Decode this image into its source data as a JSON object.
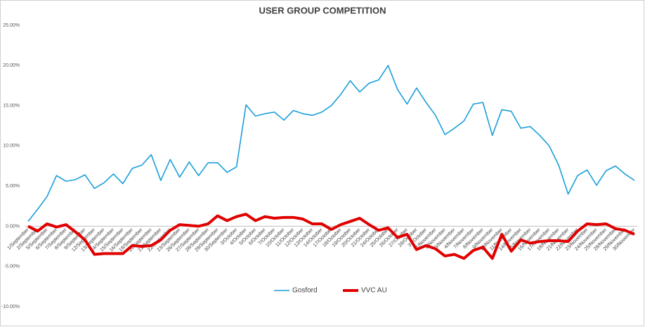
{
  "chart_data": {
    "type": "line",
    "title": "USER GROUP COMPETITION",
    "categories": [
      "1/September",
      "2/September",
      "5/September",
      "6/September",
      "7/September",
      "8/September",
      "9/September",
      "12/September",
      "13/September",
      "14/September",
      "15/September",
      "16/September",
      "19/September",
      "20/September",
      "21/September",
      "22/September",
      "23/September",
      "26/September",
      "27/September",
      "28/September",
      "29/September",
      "30/September",
      "3/October",
      "4/October",
      "5/October",
      "6/October",
      "7/October",
      "10/October",
      "11/October",
      "12/October",
      "13/October",
      "14/October",
      "17/October",
      "18/October",
      "19/October",
      "20/October",
      "21/October",
      "24/October",
      "25/October",
      "26/October",
      "27/October",
      "28/October",
      "31/October",
      "1/November",
      "2/November",
      "3/November",
      "4/November",
      "7/November",
      "8/November",
      "9/November",
      "10/November",
      "11/November",
      "14/November",
      "15/November",
      "16/November",
      "17/November",
      "18/November",
      "21/November",
      "22/November",
      "23/November",
      "24/November",
      "25/November",
      "28/November",
      "29/November",
      "30/November"
    ],
    "series": [
      {
        "name": "Gosford",
        "color": "#1a9fd9",
        "values": [
          0.6,
          2.1,
          3.7,
          6.3,
          5.6,
          5.8,
          6.4,
          4.7,
          5.4,
          6.5,
          5.3,
          7.2,
          7.6,
          8.9,
          5.7,
          8.3,
          6.1,
          8.0,
          6.3,
          7.9,
          7.9,
          6.7,
          7.4,
          15.1,
          13.7,
          14.0,
          14.2,
          13.2,
          14.4,
          14.0,
          13.8,
          14.2,
          15.0,
          16.4,
          18.1,
          16.7,
          17.8,
          18.2,
          20.0,
          17.0,
          15.2,
          17.2,
          15.4,
          13.8,
          11.4,
          12.2,
          13.1,
          15.2,
          15.4,
          11.3,
          14.5,
          14.3,
          12.2,
          12.4,
          11.3,
          10.0,
          7.6,
          4.0,
          6.3,
          7.0,
          5.1,
          6.9,
          7.5,
          6.5,
          5.7
        ]
      },
      {
        "name": "VVC AU",
        "color": "#e00000",
        "values": [
          0.0,
          -0.6,
          0.3,
          -0.1,
          0.2,
          -0.7,
          -1.7,
          -3.5,
          -3.4,
          -3.4,
          -3.4,
          -2.4,
          -2.5,
          -2.4,
          -1.7,
          -0.5,
          0.2,
          0.1,
          0.0,
          0.3,
          1.3,
          0.7,
          1.2,
          1.5,
          0.7,
          1.2,
          1.0,
          1.1,
          1.1,
          0.9,
          0.3,
          0.3,
          -0.4,
          0.2,
          0.6,
          1.0,
          0.2,
          -0.5,
          -0.2,
          -1.4,
          -1.0,
          -2.9,
          -2.4,
          -2.8,
          -3.7,
          -3.5,
          -4.0,
          -3.0,
          -2.6,
          -4.0,
          -1.0,
          -3.1,
          -1.7,
          -2.1,
          -1.9,
          -1.8,
          -1.8,
          -1.9,
          -0.6,
          0.3,
          0.2,
          0.3,
          -0.3,
          -0.5,
          -1.0
        ]
      }
    ],
    "ylim": [
      -10,
      25
    ],
    "yticks": [
      {
        "value": -10,
        "label": "-10.00%"
      },
      {
        "value": -5,
        "label": "-5.00%"
      },
      {
        "value": 0,
        "label": "0.00%"
      },
      {
        "value": 5,
        "label": "5.00%"
      },
      {
        "value": 10,
        "label": "10.00%"
      },
      {
        "value": 15,
        "label": "15.00%"
      },
      {
        "value": 20,
        "label": "20.00%"
      },
      {
        "value": 25,
        "label": "25.00%"
      }
    ],
    "legend": "bottom"
  }
}
